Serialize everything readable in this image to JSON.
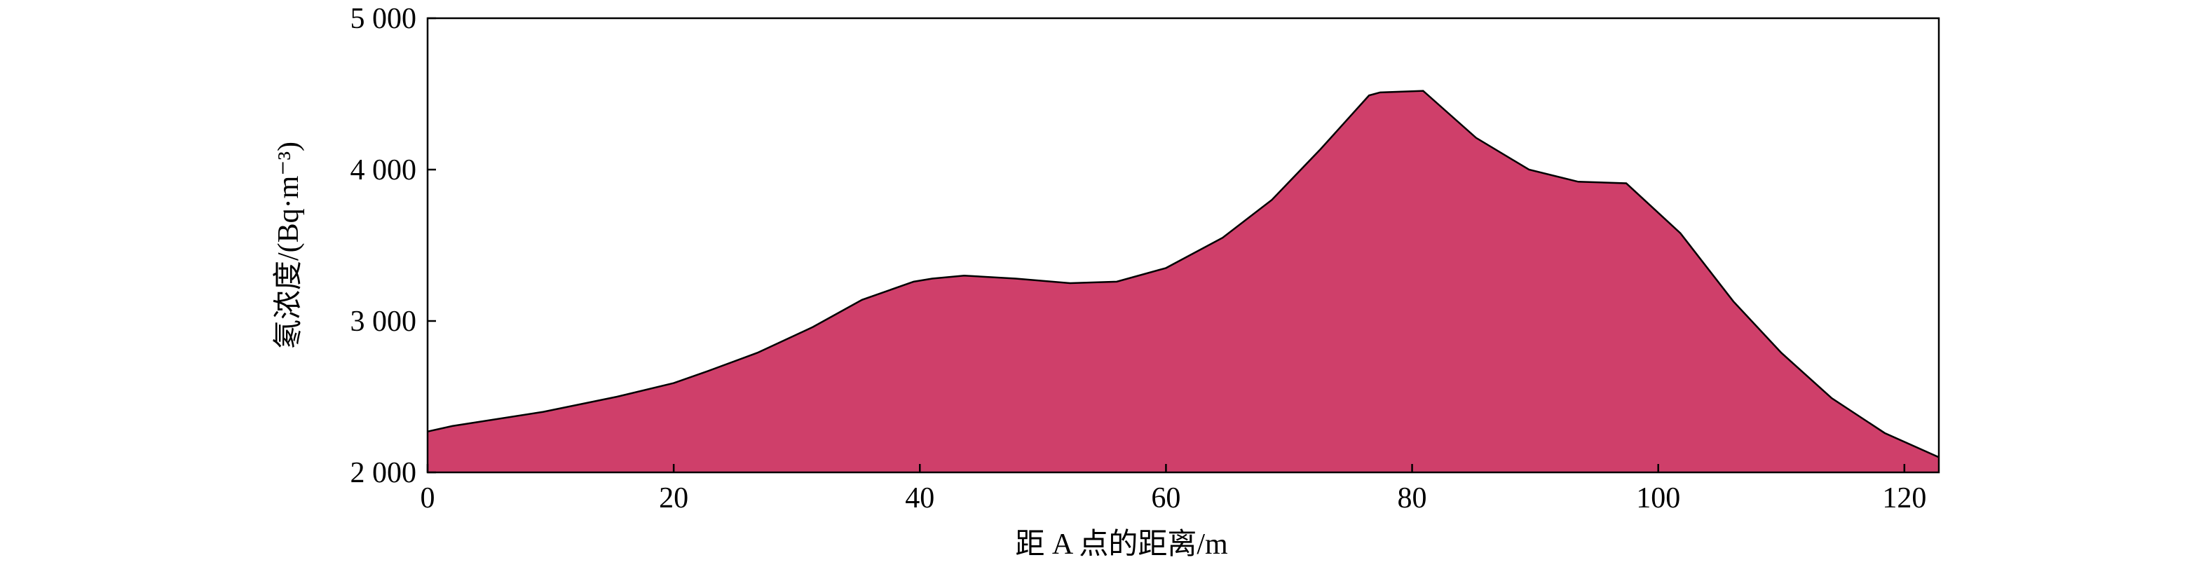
{
  "chart_data": {
    "type": "area",
    "x_label": "距 A 点的距离/m",
    "y_label": "氡浓度/(Bq·m⁻³)",
    "x": [
      0,
      2,
      9.4,
      15.4,
      20,
      22.8,
      26.8,
      31.3,
      35.3,
      39.5,
      41,
      43.6,
      47.8,
      52.2,
      56,
      60,
      64.6,
      68.6,
      72.5,
      76.5,
      77.4,
      80.9,
      85.2,
      89.5,
      93.5,
      97.4,
      98.2,
      101.8,
      106.1,
      110,
      114.1,
      118.4,
      122.8
    ],
    "series": [
      {
        "name": "氡浓度",
        "color": "#cf3f6a",
        "values": [
          2270,
          2306,
          2400,
          2500,
          2590,
          2670,
          2790,
          2960,
          3140,
          3260,
          3280,
          3300,
          3280,
          3250,
          3260,
          3350,
          3550,
          3800,
          4130,
          4490,
          4510,
          4520,
          4210,
          4000,
          3920,
          3910,
          3850,
          3580,
          3130,
          2790,
          2490,
          2260,
          2100
        ]
      }
    ],
    "xlim": [
      0,
      122.8
    ],
    "ylim": [
      2000,
      5000
    ],
    "xticks": [
      0,
      20,
      40,
      60,
      80,
      100,
      120
    ],
    "yticks": [
      {
        "value": 2000,
        "label": "2 000"
      },
      {
        "value": 3000,
        "label": "3 000"
      },
      {
        "value": 4000,
        "label": "4 000"
      },
      {
        "value": 5000,
        "label": "5 000"
      }
    ]
  }
}
